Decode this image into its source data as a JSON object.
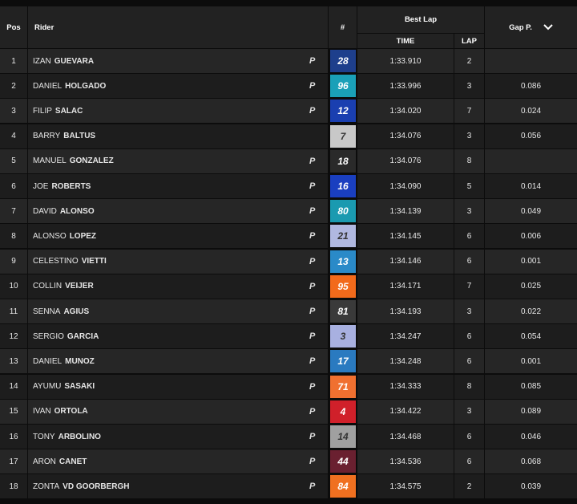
{
  "header": {
    "pos": "Pos",
    "rider": "Rider",
    "number": "#",
    "best_lap": "Best Lap",
    "time": "TIME",
    "lap": "LAP",
    "gap": "Gap P."
  },
  "rows": [
    {
      "pos": "1",
      "first": "IZAN",
      "last": "GUEVARA",
      "tag": "P",
      "number": "28",
      "color": "#1e3f8c",
      "time": "1:33.910",
      "lap": "2"
    },
    {
      "pos": "2",
      "first": "DANIEL",
      "last": "HOLGADO",
      "tag": "P",
      "number": "96",
      "color": "#1aa0b8",
      "time": "1:33.996",
      "lap": "3",
      "gap": "0.086"
    },
    {
      "pos": "3",
      "first": "FILIP",
      "last": "SALAC",
      "tag": "P",
      "number": "12",
      "color": "#1a3fb0",
      "time": "1:34.020",
      "lap": "7",
      "gap": "0.024"
    },
    {
      "pos": "4",
      "first": "BARRY",
      "last": "BALTUS",
      "number": "7",
      "color": "#c8c8c8",
      "time": "1:34.076",
      "lap": "3",
      "gap": "0.056"
    },
    {
      "pos": "5",
      "first": "MANUEL",
      "last": "GONZALEZ",
      "tag": "P",
      "number": "18",
      "color": "#2a2a2a",
      "time": "1:34.076",
      "lap": "8"
    },
    {
      "pos": "6",
      "first": "JOE",
      "last": "ROBERTS",
      "tag": "P",
      "number": "16",
      "color": "#1a3fc0",
      "time": "1:34.090",
      "lap": "5",
      "gap": "0.014"
    },
    {
      "pos": "7",
      "first": "DAVID",
      "last": "ALONSO",
      "tag": "P",
      "number": "80",
      "color": "#1a9ab0",
      "time": "1:34.139",
      "lap": "3",
      "gap": "0.049"
    },
    {
      "pos": "8",
      "first": "ALONSO",
      "last": "LOPEZ",
      "tag": "P",
      "number": "21",
      "color": "#b0b8e0",
      "time": "1:34.145",
      "lap": "6",
      "gap": "0.006"
    },
    {
      "pos": "9",
      "first": "CELESTINO",
      "last": "VIETTI",
      "tag": "P",
      "number": "13",
      "color": "#2a8ac8",
      "time": "1:34.146",
      "lap": "6",
      "gap": "0.001"
    },
    {
      "pos": "10",
      "first": "COLLIN",
      "last": "VEIJER",
      "tag": "P",
      "number": "95",
      "color": "#f26a1b",
      "time": "1:34.171",
      "lap": "7",
      "gap": "0.025"
    },
    {
      "pos": "11",
      "first": "SENNA",
      "last": "AGIUS",
      "tag": "P",
      "number": "81",
      "color": "#3a3a3a",
      "time": "1:34.193",
      "lap": "3",
      "gap": "0.022"
    },
    {
      "pos": "12",
      "first": "SERGIO",
      "last": "GARCIA",
      "tag": "P",
      "number": "3",
      "color": "#a8b0e0",
      "time": "1:34.247",
      "lap": "6",
      "gap": "0.054"
    },
    {
      "pos": "13",
      "first": "DANIEL",
      "last": "MUNOZ",
      "tag": "P",
      "number": "17",
      "color": "#2a7ac0",
      "time": "1:34.248",
      "lap": "6",
      "gap": "0.001"
    },
    {
      "pos": "14",
      "first": "AYUMU",
      "last": "SASAKI",
      "tag": "P",
      "number": "71",
      "color": "#f07030",
      "time": "1:34.333",
      "lap": "8",
      "gap": "0.085"
    },
    {
      "pos": "15",
      "first": "IVAN",
      "last": "ORTOLA",
      "tag": "P",
      "number": "4",
      "color": "#d0202a",
      "time": "1:34.422",
      "lap": "3",
      "gap": "0.089"
    },
    {
      "pos": "16",
      "first": "TONY",
      "last": "ARBOLINO",
      "tag": "P",
      "number": "14",
      "color": "#a0a0a0",
      "time": "1:34.468",
      "lap": "6",
      "gap": "0.046"
    },
    {
      "pos": "17",
      "first": "ARON",
      "last": "CANET",
      "tag": "P",
      "number": "44",
      "color": "#6a2030",
      "time": "1:34.536",
      "lap": "6",
      "gap": "0.068"
    },
    {
      "pos": "18",
      "first": "ZONTA",
      "last": "VD GOORBERGH",
      "tag": "P",
      "number": "84",
      "color": "#f07020",
      "time": "1:34.575",
      "lap": "2",
      "gap": "0.039"
    }
  ]
}
